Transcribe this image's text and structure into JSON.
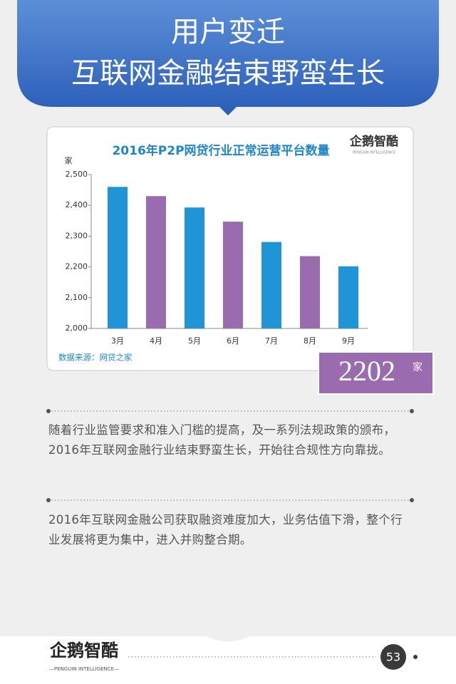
{
  "header": {
    "title_lines": [
      "用户变迁",
      "互联网金融结束野蛮生长"
    ]
  },
  "chart_data": {
    "type": "bar",
    "title": "2016年P2P网贷行业正常运营平台数量",
    "y_label": "家",
    "logo": "企鹅智酷",
    "logo_sub": "PENGUIN INTELLIGENCE",
    "categories": [
      "3月",
      "4月",
      "5月",
      "6月",
      "7月",
      "8月",
      "9月"
    ],
    "values": [
      2460,
      2430,
      2393,
      2347,
      2281,
      2235,
      2202
    ],
    "colors": [
      "#1f95d8",
      "#9b6bb0",
      "#1f95d8",
      "#9b6bb0",
      "#1f95d8",
      "#9b6bb0",
      "#1f95d8"
    ],
    "ylim": [
      2000,
      2500
    ],
    "yticks": [
      {
        "value": 2000,
        "label": "2,000"
      },
      {
        "value": 2100,
        "label": "2,100"
      },
      {
        "value": 2200,
        "label": "2,200"
      },
      {
        "value": 2300,
        "label": "2,300"
      },
      {
        "value": 2400,
        "label": "2,400"
      },
      {
        "value": 2500,
        "label": "2,500"
      }
    ],
    "grid": false,
    "source": "数据来源：网贷之家"
  },
  "highlight": {
    "text": "2202",
    "unit": "家"
  },
  "paragraphs": [
    "随着行业监管要求和准入门槛的提高，及一系列法规政策的颁布，2016年互联网金融行业结束野蛮生长，开始往合规性方向靠拢。",
    "2016年互联网金融公司获取融资难度加大，业务估值下滑，整个行业发展将更为集中，进入并购整合期。"
  ],
  "footer": {
    "logo": "企鹅智酷",
    "logo_sub": "—PENGUIN INTELLIGENCE—",
    "page": "53"
  }
}
